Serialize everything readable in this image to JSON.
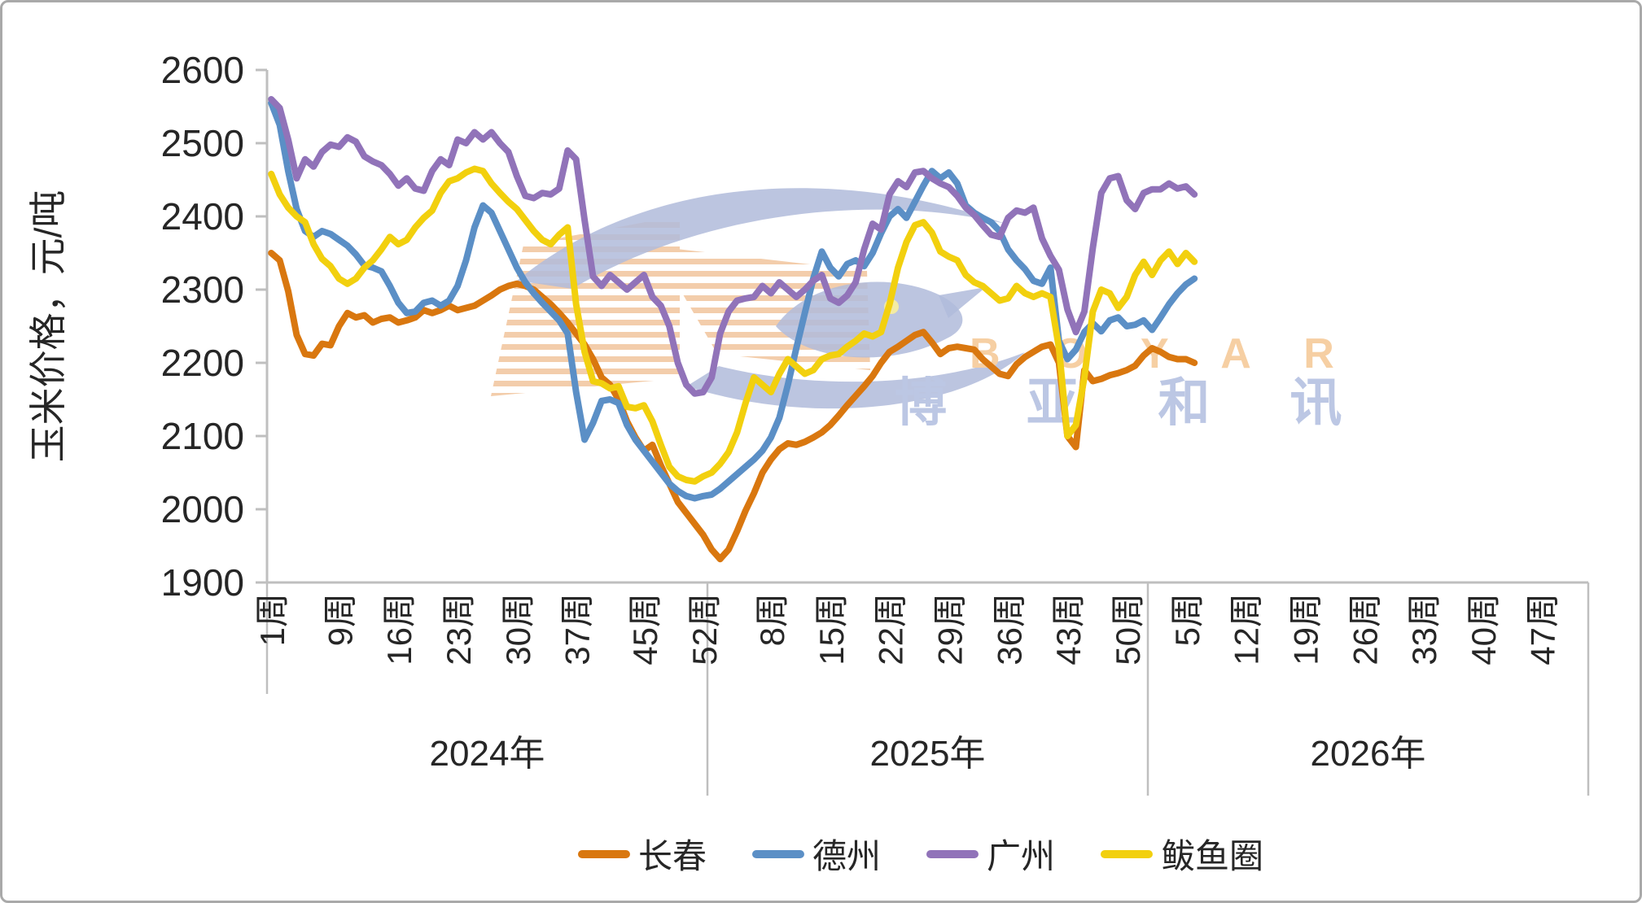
{
  "page": {
    "background": "#ffffff",
    "border_color": "#a9a9a9",
    "text_color": "#262626",
    "axis_color": "#bfbfbf"
  },
  "watermark": {
    "latin_text": "B O Y A R",
    "cn_text": "博 亚 和 讯",
    "latin_color": "#f6cfa3",
    "cn_color": "#bcc7e4",
    "bird_color": "#b0bbdb",
    "stripe_color": "#f3cdab",
    "eye_color": "#f3eba4"
  },
  "chart_data": {
    "type": "line",
    "title": "",
    "ylabel": "玉米价格，元/吨",
    "ylim": [
      1900,
      2600
    ],
    "ytick_step": 100,
    "ytick_labels": [
      "1900",
      "2000",
      "2100",
      "2200",
      "2300",
      "2400",
      "2500",
      "2600"
    ],
    "week_suffix": "周",
    "grid": false,
    "legend_position": "bottom",
    "years": [
      {
        "label": "2024年",
        "weeks": 52,
        "tick_weeks": [
          1,
          9,
          16,
          23,
          30,
          37,
          45,
          52
        ]
      },
      {
        "label": "2025年",
        "weeks": 52,
        "tick_weeks": [
          8,
          15,
          22,
          29,
          36,
          43,
          50
        ]
      },
      {
        "label": "2026年",
        "weeks": 52,
        "tick_weeks": [
          5,
          12,
          19,
          26,
          33,
          40,
          47
        ]
      }
    ],
    "data_weeks": 110,
    "series": [
      {
        "name": "长春",
        "color": "#D9770F",
        "values": [
          2350,
          2340,
          2298,
          2238,
          2212,
          2210,
          2226,
          2224,
          2250,
          2268,
          2262,
          2265,
          2255,
          2260,
          2262,
          2255,
          2258,
          2262,
          2272,
          2268,
          2272,
          2278,
          2272,
          2275,
          2278,
          2285,
          2292,
          2300,
          2305,
          2308,
          2305,
          2300,
          2290,
          2280,
          2268,
          2255,
          2240,
          2225,
          2205,
          2180,
          2170,
          2150,
          2120,
          2098,
          2080,
          2088,
          2060,
          2035,
          2010,
          1995,
          1980,
          1965,
          1945,
          1932,
          1945,
          1970,
          1998,
          2022,
          2050,
          2068,
          2082,
          2090,
          2088,
          2092,
          2098,
          2105,
          2115,
          2128,
          2142,
          2155,
          2168,
          2182,
          2200,
          2215,
          2222,
          2230,
          2238,
          2242,
          2228,
          2212,
          2220,
          2222,
          2220,
          2218,
          2205,
          2195,
          2185,
          2182,
          2198,
          2208,
          2215,
          2222,
          2225,
          2200,
          2100,
          2085,
          2190,
          2175,
          2178,
          2183,
          2186,
          2190,
          2196,
          2210,
          2220,
          2215,
          2208,
          2205,
          2205,
          2200
        ]
      },
      {
        "name": "德州",
        "color": "#5B8FC6",
        "values": [
          2555,
          2525,
          2462,
          2410,
          2380,
          2372,
          2380,
          2376,
          2368,
          2360,
          2348,
          2333,
          2330,
          2325,
          2305,
          2282,
          2268,
          2270,
          2282,
          2285,
          2278,
          2285,
          2305,
          2340,
          2385,
          2415,
          2405,
          2380,
          2355,
          2330,
          2310,
          2295,
          2282,
          2270,
          2258,
          2240,
          2160,
          2095,
          2118,
          2148,
          2150,
          2145,
          2115,
          2095,
          2080,
          2065,
          2050,
          2035,
          2025,
          2018,
          2015,
          2018,
          2020,
          2028,
          2038,
          2048,
          2058,
          2068,
          2080,
          2098,
          2125,
          2170,
          2220,
          2268,
          2315,
          2352,
          2330,
          2318,
          2335,
          2340,
          2332,
          2350,
          2377,
          2400,
          2410,
          2398,
          2420,
          2442,
          2462,
          2452,
          2460,
          2445,
          2415,
          2405,
          2398,
          2392,
          2380,
          2355,
          2340,
          2328,
          2312,
          2308,
          2330,
          2230,
          2205,
          2218,
          2242,
          2254,
          2243,
          2258,
          2262,
          2250,
          2252,
          2258,
          2245,
          2262,
          2280,
          2295,
          2307,
          2315
        ]
      },
      {
        "name": "广州",
        "color": "#9173B9",
        "values": [
          2560,
          2548,
          2505,
          2452,
          2478,
          2468,
          2488,
          2498,
          2495,
          2508,
          2502,
          2482,
          2475,
          2470,
          2458,
          2442,
          2452,
          2438,
          2435,
          2462,
          2478,
          2470,
          2505,
          2500,
          2515,
          2505,
          2515,
          2500,
          2488,
          2455,
          2428,
          2425,
          2432,
          2430,
          2438,
          2490,
          2478,
          2395,
          2318,
          2305,
          2320,
          2310,
          2300,
          2310,
          2320,
          2290,
          2278,
          2250,
          2200,
          2170,
          2158,
          2160,
          2180,
          2240,
          2270,
          2285,
          2288,
          2290,
          2305,
          2295,
          2310,
          2300,
          2290,
          2300,
          2312,
          2320,
          2288,
          2282,
          2292,
          2310,
          2355,
          2390,
          2382,
          2430,
          2448,
          2440,
          2460,
          2462,
          2452,
          2445,
          2440,
          2428,
          2412,
          2402,
          2388,
          2375,
          2372,
          2398,
          2408,
          2405,
          2412,
          2370,
          2346,
          2327,
          2273,
          2242,
          2270,
          2357,
          2432,
          2452,
          2455,
          2422,
          2410,
          2432,
          2437,
          2437,
          2445,
          2438,
          2441,
          2430
        ]
      },
      {
        "name": "鲅鱼圈",
        "color": "#F2D00E",
        "values": [
          2458,
          2430,
          2412,
          2400,
          2392,
          2362,
          2342,
          2332,
          2315,
          2308,
          2315,
          2330,
          2340,
          2355,
          2372,
          2362,
          2368,
          2385,
          2398,
          2408,
          2432,
          2448,
          2452,
          2460,
          2465,
          2462,
          2445,
          2432,
          2420,
          2410,
          2395,
          2380,
          2368,
          2362,
          2375,
          2385,
          2280,
          2215,
          2175,
          2172,
          2165,
          2168,
          2140,
          2138,
          2142,
          2120,
          2088,
          2058,
          2045,
          2040,
          2038,
          2045,
          2050,
          2062,
          2078,
          2105,
          2145,
          2180,
          2170,
          2160,
          2185,
          2205,
          2195,
          2185,
          2190,
          2205,
          2210,
          2212,
          2222,
          2230,
          2240,
          2236,
          2242,
          2280,
          2330,
          2365,
          2388,
          2392,
          2378,
          2352,
          2345,
          2340,
          2320,
          2310,
          2305,
          2295,
          2285,
          2288,
          2305,
          2295,
          2290,
          2295,
          2290,
          2220,
          2100,
          2115,
          2180,
          2270,
          2300,
          2295,
          2275,
          2290,
          2320,
          2338,
          2320,
          2340,
          2352,
          2335,
          2350,
          2338
        ]
      }
    ]
  }
}
